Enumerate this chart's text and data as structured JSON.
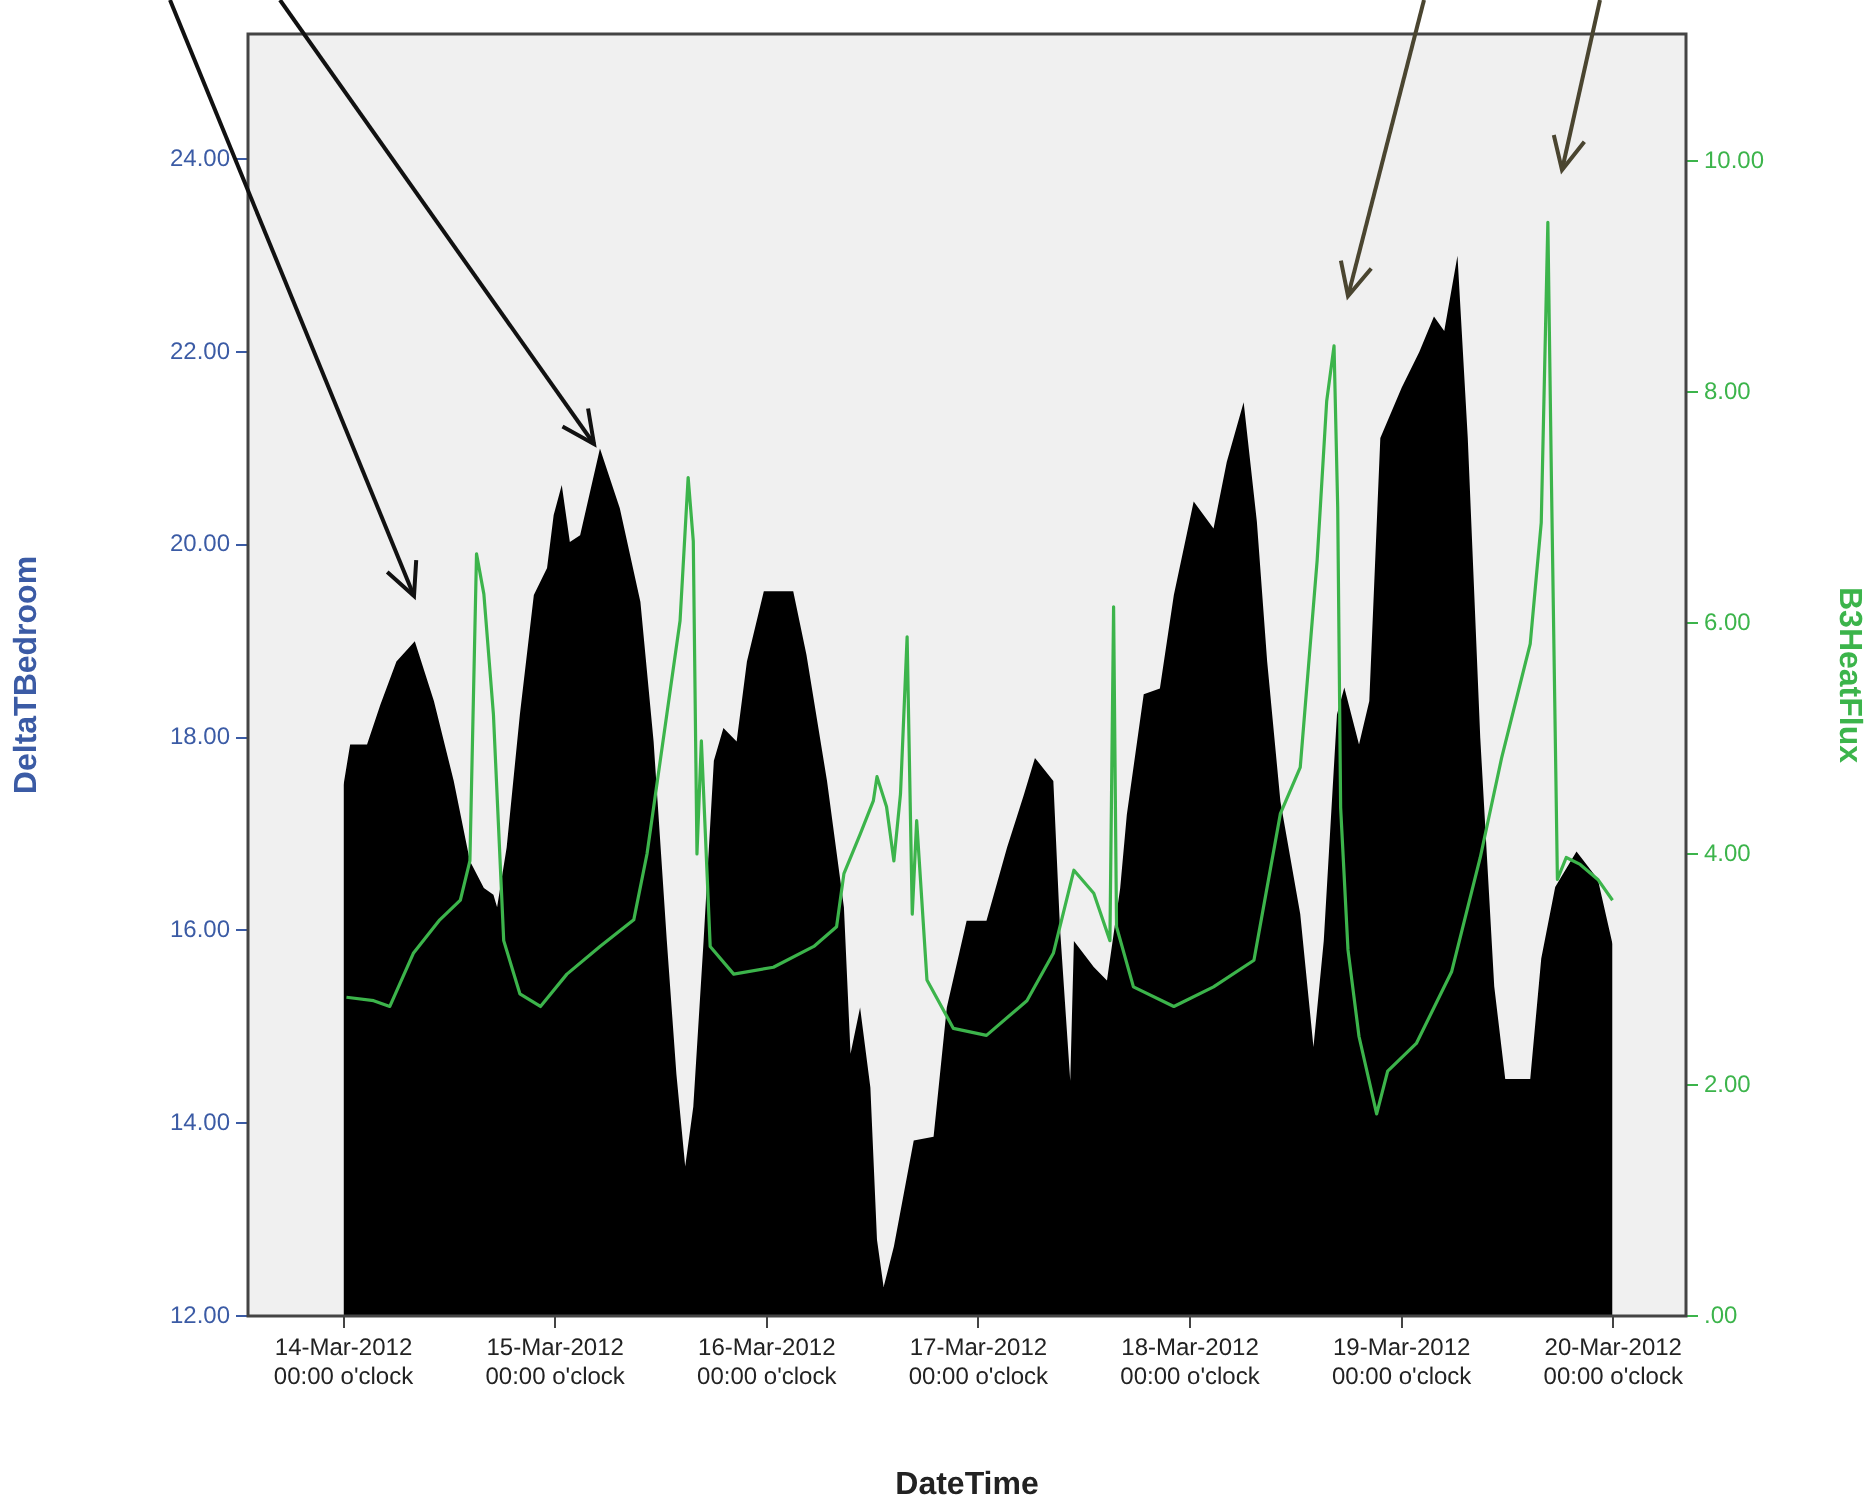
{
  "chart_data": {
    "type": "area",
    "xlabel": "DateTime",
    "ylabel": "DeltaTBedroom",
    "y2label": "B3HeatFlux",
    "xlim": [
      "2012-03-13T13:10",
      "2012-03-20T08:15"
    ],
    "xticks": [
      {
        "value": "2012-03-14",
        "label": "14-Mar-2012\n00:00 o'clock"
      },
      {
        "value": "2012-03-15",
        "label": "15-Mar-2012\n00:00 o'clock"
      },
      {
        "value": "2012-03-16",
        "label": "16-Mar-2012\n00:00 o'clock"
      },
      {
        "value": "2012-03-17",
        "label": "17-Mar-2012\n00:00 o'clock"
      },
      {
        "value": "2012-03-18",
        "label": "18-Mar-2012\n00:00 o'clock"
      },
      {
        "value": "2012-03-19",
        "label": "19-Mar-2012\n00:00 o'clock"
      },
      {
        "value": "2012-03-20",
        "label": "20-Mar-2012\n00:00 o'clock"
      }
    ],
    "ylim": [
      12,
      25.3
    ],
    "yticks": [
      {
        "value": 12,
        "label": "12.00"
      },
      {
        "value": 14,
        "label": "14.00"
      },
      {
        "value": 16,
        "label": "16.00"
      },
      {
        "value": 18,
        "label": "18.00"
      },
      {
        "value": 20,
        "label": "20.00"
      },
      {
        "value": 22,
        "label": "22.00"
      },
      {
        "value": 24,
        "label": "24.00"
      }
    ],
    "y2lim": [
      0,
      11.1
    ],
    "y2ticks": [
      {
        "value": 0,
        "label": ".00"
      },
      {
        "value": 2,
        "label": "2.00"
      },
      {
        "value": 4,
        "label": "4.00"
      },
      {
        "value": 6,
        "label": "6.00"
      },
      {
        "value": 8,
        "label": "8.00"
      },
      {
        "value": 10,
        "label": "10.00"
      }
    ],
    "legend": false,
    "series": [
      {
        "color": "#000000",
        "x": [
          "2012-03-14T00:00",
          "2012-03-14T00:45",
          "2012-03-14T02:40",
          "2012-03-14T04:10",
          "2012-03-14T06:00",
          "2012-03-14T08:05",
          "2012-03-14T10:15",
          "2012-03-14T12:30",
          "2012-03-14T14:20",
          "2012-03-14T15:55",
          "2012-03-14T17:00",
          "2012-03-14T17:25",
          "2012-03-14T18:30",
          "2012-03-14T20:00",
          "2012-03-14T21:35",
          "2012-03-14T23:05",
          "2012-03-14T23:50",
          "2012-03-15T00:45",
          "2012-03-15T01:40",
          "2012-03-15T02:50",
          "2012-03-15T05:05",
          "2012-03-15T07:20",
          "2012-03-15T09:40",
          "2012-03-15T11:10",
          "2012-03-15T12:40",
          "2012-03-15T13:45",
          "2012-03-15T14:45",
          "2012-03-15T15:40",
          "2012-03-15T16:50",
          "2012-03-15T18:00",
          "2012-03-15T19:05",
          "2012-03-15T20:35",
          "2012-03-15T21:45",
          "2012-03-15T23:40",
          "2012-03-16T03:00",
          "2012-03-16T04:30",
          "2012-03-16T06:50",
          "2012-03-16T08:45",
          "2012-03-16T09:30",
          "2012-03-16T10:35",
          "2012-03-16T11:45",
          "2012-03-16T12:30",
          "2012-03-16T13:15",
          "2012-03-16T14:25",
          "2012-03-16T16:40",
          "2012-03-16T18:55",
          "2012-03-16T20:25",
          "2012-03-16T22:40",
          "2012-03-17T00:55",
          "2012-03-17T03:15",
          "2012-03-17T05:10",
          "2012-03-17T06:25",
          "2012-03-17T08:30",
          "2012-03-17T09:15",
          "2012-03-17T10:25",
          "2012-03-17T10:50",
          "2012-03-17T13:05",
          "2012-03-17T14:35",
          "2012-03-17T16:05",
          "2012-03-17T16:50",
          "2012-03-17T18:45",
          "2012-03-17T20:35",
          "2012-03-17T22:10",
          "2012-03-18T00:25",
          "2012-03-18T02:40",
          "2012-03-18T04:10",
          "2012-03-18T06:05",
          "2012-03-18T07:35",
          "2012-03-18T08:45",
          "2012-03-18T10:15",
          "2012-03-18T12:30",
          "2012-03-18T14:00",
          "2012-03-18T15:10",
          "2012-03-18T16:40",
          "2012-03-18T17:30",
          "2012-03-18T19:10",
          "2012-03-18T20:20",
          "2012-03-18T21:35",
          "2012-03-19T00:00",
          "2012-03-19T02:00",
          "2012-03-19T03:40",
          "2012-03-19T04:50",
          "2012-03-19T06:20",
          "2012-03-19T07:30",
          "2012-03-19T08:55",
          "2012-03-19T10:30",
          "2012-03-19T11:45",
          "2012-03-19T14:35",
          "2012-03-19T15:50",
          "2012-03-19T17:25",
          "2012-03-19T19:50",
          "2012-03-19T22:15",
          "2012-03-19T23:55"
        ],
        "values": [
          17.51,
          17.93,
          17.93,
          18.34,
          18.79,
          19.0,
          18.38,
          17.55,
          16.72,
          16.44,
          16.37,
          16.24,
          16.86,
          18.24,
          19.48,
          19.76,
          20.31,
          20.62,
          20.03,
          20.1,
          21.0,
          20.38,
          19.41,
          17.96,
          15.89,
          14.51,
          13.55,
          14.17,
          15.89,
          17.76,
          18.1,
          17.96,
          18.79,
          19.52,
          19.52,
          18.86,
          17.55,
          16.24,
          14.72,
          15.2,
          14.37,
          12.79,
          12.3,
          12.72,
          13.82,
          13.86,
          15.2,
          16.1,
          16.1,
          16.86,
          17.41,
          17.79,
          17.55,
          16.03,
          14.44,
          15.89,
          15.62,
          15.48,
          16.44,
          17.2,
          18.45,
          18.51,
          19.48,
          20.45,
          20.17,
          20.86,
          21.48,
          20.24,
          18.79,
          17.34,
          16.17,
          14.79,
          15.89,
          18.24,
          18.52,
          17.93,
          18.38,
          21.11,
          21.63,
          22.0,
          22.37,
          22.22,
          23.0,
          21.11,
          18.0,
          15.42,
          14.46,
          14.46,
          15.71,
          16.45,
          16.82,
          16.53,
          15.86
        ]
      },
      {
        "type": "line",
        "axis": "y2",
        "color": "#3cb44b",
        "x": [
          "2012-03-14T00:20",
          "2012-03-14T03:25",
          "2012-03-14T05:15",
          "2012-03-14T07:55",
          "2012-03-14T10:55",
          "2012-03-14T13:15",
          "2012-03-14T14:20",
          "2012-03-14T15:05",
          "2012-03-14T15:55",
          "2012-03-14T17:00",
          "2012-03-14T18:10",
          "2012-03-14T20:00",
          "2012-03-14T22:20",
          "2012-03-15T01:20",
          "2012-03-15T05:05",
          "2012-03-15T08:55",
          "2012-03-15T10:25",
          "2012-03-15T12:40",
          "2012-03-15T14:10",
          "2012-03-15T15:05",
          "2012-03-15T15:40",
          "2012-03-15T16:05",
          "2012-03-15T16:35",
          "2012-03-15T17:35",
          "2012-03-15T20:15",
          "2012-03-16T00:45",
          "2012-03-16T05:20",
          "2012-03-16T07:55",
          "2012-03-16T08:45",
          "2012-03-16T10:35",
          "2012-03-16T12:05",
          "2012-03-16T12:30",
          "2012-03-16T13:35",
          "2012-03-16T14:25",
          "2012-03-16T15:10",
          "2012-03-16T15:55",
          "2012-03-16T16:30",
          "2012-03-16T17:00",
          "2012-03-16T18:10",
          "2012-03-16T21:10",
          "2012-03-17T00:55",
          "2012-03-17T05:30",
          "2012-03-17T08:30",
          "2012-03-17T10:50",
          "2012-03-17T13:05",
          "2012-03-17T14:55",
          "2012-03-17T15:20",
          "2012-03-17T15:40",
          "2012-03-17T17:35",
          "2012-03-17T22:10",
          "2012-03-18T02:40",
          "2012-03-18T07:15",
          "2012-03-18T10:15",
          "2012-03-18T12:30",
          "2012-03-18T14:25",
          "2012-03-18T15:30",
          "2012-03-18T16:20",
          "2012-03-18T16:45",
          "2012-03-18T17:05",
          "2012-03-18T17:55",
          "2012-03-18T19:10",
          "2012-03-18T21:10",
          "2012-03-18T22:25",
          "2012-03-19T01:40",
          "2012-03-19T05:40",
          "2012-03-19T08:55",
          "2012-03-19T11:20",
          "2012-03-19T14:35",
          "2012-03-19T15:50",
          "2012-03-19T16:35",
          "2012-03-19T17:00",
          "2012-03-19T17:40",
          "2012-03-19T18:40",
          "2012-03-19T20:15",
          "2012-03-19T22:15",
          "2012-03-19T23:55"
        ],
        "values": [
          2.76,
          2.73,
          2.68,
          3.14,
          3.43,
          3.6,
          3.94,
          6.6,
          6.25,
          5.21,
          3.25,
          2.79,
          2.68,
          2.96,
          3.2,
          3.43,
          4.0,
          5.21,
          6.02,
          7.26,
          6.71,
          4.0,
          4.98,
          3.2,
          2.96,
          3.02,
          3.2,
          3.37,
          3.83,
          4.17,
          4.46,
          4.67,
          4.41,
          3.94,
          4.52,
          5.88,
          3.48,
          4.29,
          2.91,
          2.49,
          2.43,
          2.73,
          3.14,
          3.86,
          3.66,
          3.25,
          6.14,
          3.37,
          2.85,
          2.68,
          2.85,
          3.08,
          4.35,
          4.75,
          6.54,
          7.92,
          8.4,
          7.0,
          4.4,
          3.17,
          2.42,
          1.75,
          2.12,
          2.36,
          2.98,
          3.97,
          4.83,
          5.82,
          6.87,
          9.47,
          7.18,
          3.78,
          3.97,
          3.91,
          3.78,
          3.6
        ]
      }
    ]
  }
}
